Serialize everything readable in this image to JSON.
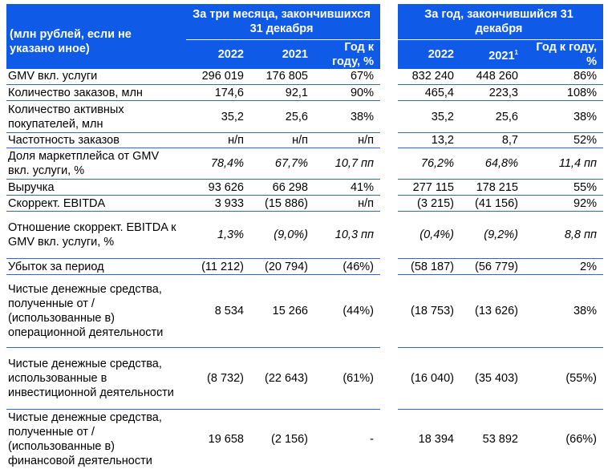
{
  "header": {
    "units": "(млн рублей, если не указано иное)",
    "group_quarter": "За три месяца, закончившихся 31 декабря",
    "group_year": "За год, закончившийся 31 декабря",
    "q_cols": [
      "2022",
      "2021",
      "Год к году, %"
    ],
    "y_cols": [
      "2022",
      "2021",
      "Год к году, %"
    ],
    "y_2021_footnote": "1"
  },
  "rows": [
    {
      "label": "GMV вкл. услуги",
      "q": [
        "296 019",
        "176 805",
        "67%"
      ],
      "y": [
        "832 240",
        "448 260",
        "86%"
      ]
    },
    {
      "label": "Количество заказов, млн",
      "q": [
        "174,6",
        "92,1",
        "90%"
      ],
      "y": [
        "465,4",
        "223,3",
        "108%"
      ]
    },
    {
      "label": "Количество активных покупателей, млн",
      "q": [
        "35,2",
        "25,6",
        "38%"
      ],
      "y": [
        "35,2",
        "25,6",
        "38%"
      ]
    },
    {
      "label": "Частотность заказов",
      "q": [
        "н/п",
        "н/п",
        "н/п"
      ],
      "y": [
        "13,2",
        "8,7",
        "52%"
      ]
    },
    {
      "label": "Доля маркетплейса от GMV вкл. услуги, %",
      "italic": true,
      "q": [
        "78,4%",
        "67,7%",
        "10,7 пп"
      ],
      "y": [
        "76,2%",
        "64,8%",
        "11,4 пп"
      ]
    },
    {
      "label": "Выручка",
      "q": [
        "93 626",
        "66 298",
        "41%"
      ],
      "y": [
        "277 115",
        "178 215",
        "55%"
      ]
    },
    {
      "label": "Скоррект. EBITDA",
      "q": [
        "3 933",
        "(15 886)",
        "н/п"
      ],
      "y": [
        "(3 215)",
        "(41 156)",
        "92%"
      ]
    },
    {
      "label": "Отношение скоррект. EBITDA к GMV вкл. услуги, %",
      "italic": true,
      "q": [
        "1,3%",
        "(9,0%)",
        "10,3 пп"
      ],
      "y": [
        "(0,4%)",
        "(9,2%)",
        "8,8 пп"
      ]
    },
    {
      "label": "Убыток за период",
      "q": [
        "(11 212)",
        "(20 794)",
        "(46%)"
      ],
      "y": [
        "(58 187)",
        "(56 779)",
        "2%"
      ]
    },
    {
      "label": "Чистые денежные средства, полученные от / (использованные в) операционной деятельности",
      "q": [
        "8 534",
        "15 266",
        "(44%)"
      ],
      "y": [
        "(18 753)",
        "(13 626)",
        "38%"
      ]
    },
    {
      "label": "Чистые денежные средства, использованные в инвестиционной деятельности",
      "q": [
        "(8 732)",
        "(22 643)",
        "(61%)"
      ],
      "y": [
        "(16 040)",
        "(35 403)",
        "(55%)"
      ]
    },
    {
      "label": "Чистые денежные средства, полученные от / (использованные в) финансовой деятельности",
      "q": [
        "19 658",
        "(2 156)",
        "-"
      ],
      "y": [
        "18 394",
        "53 892",
        "(66%)"
      ]
    }
  ],
  "colors": {
    "header_bg": "#0f5be8",
    "rule": "#2e64dc"
  }
}
